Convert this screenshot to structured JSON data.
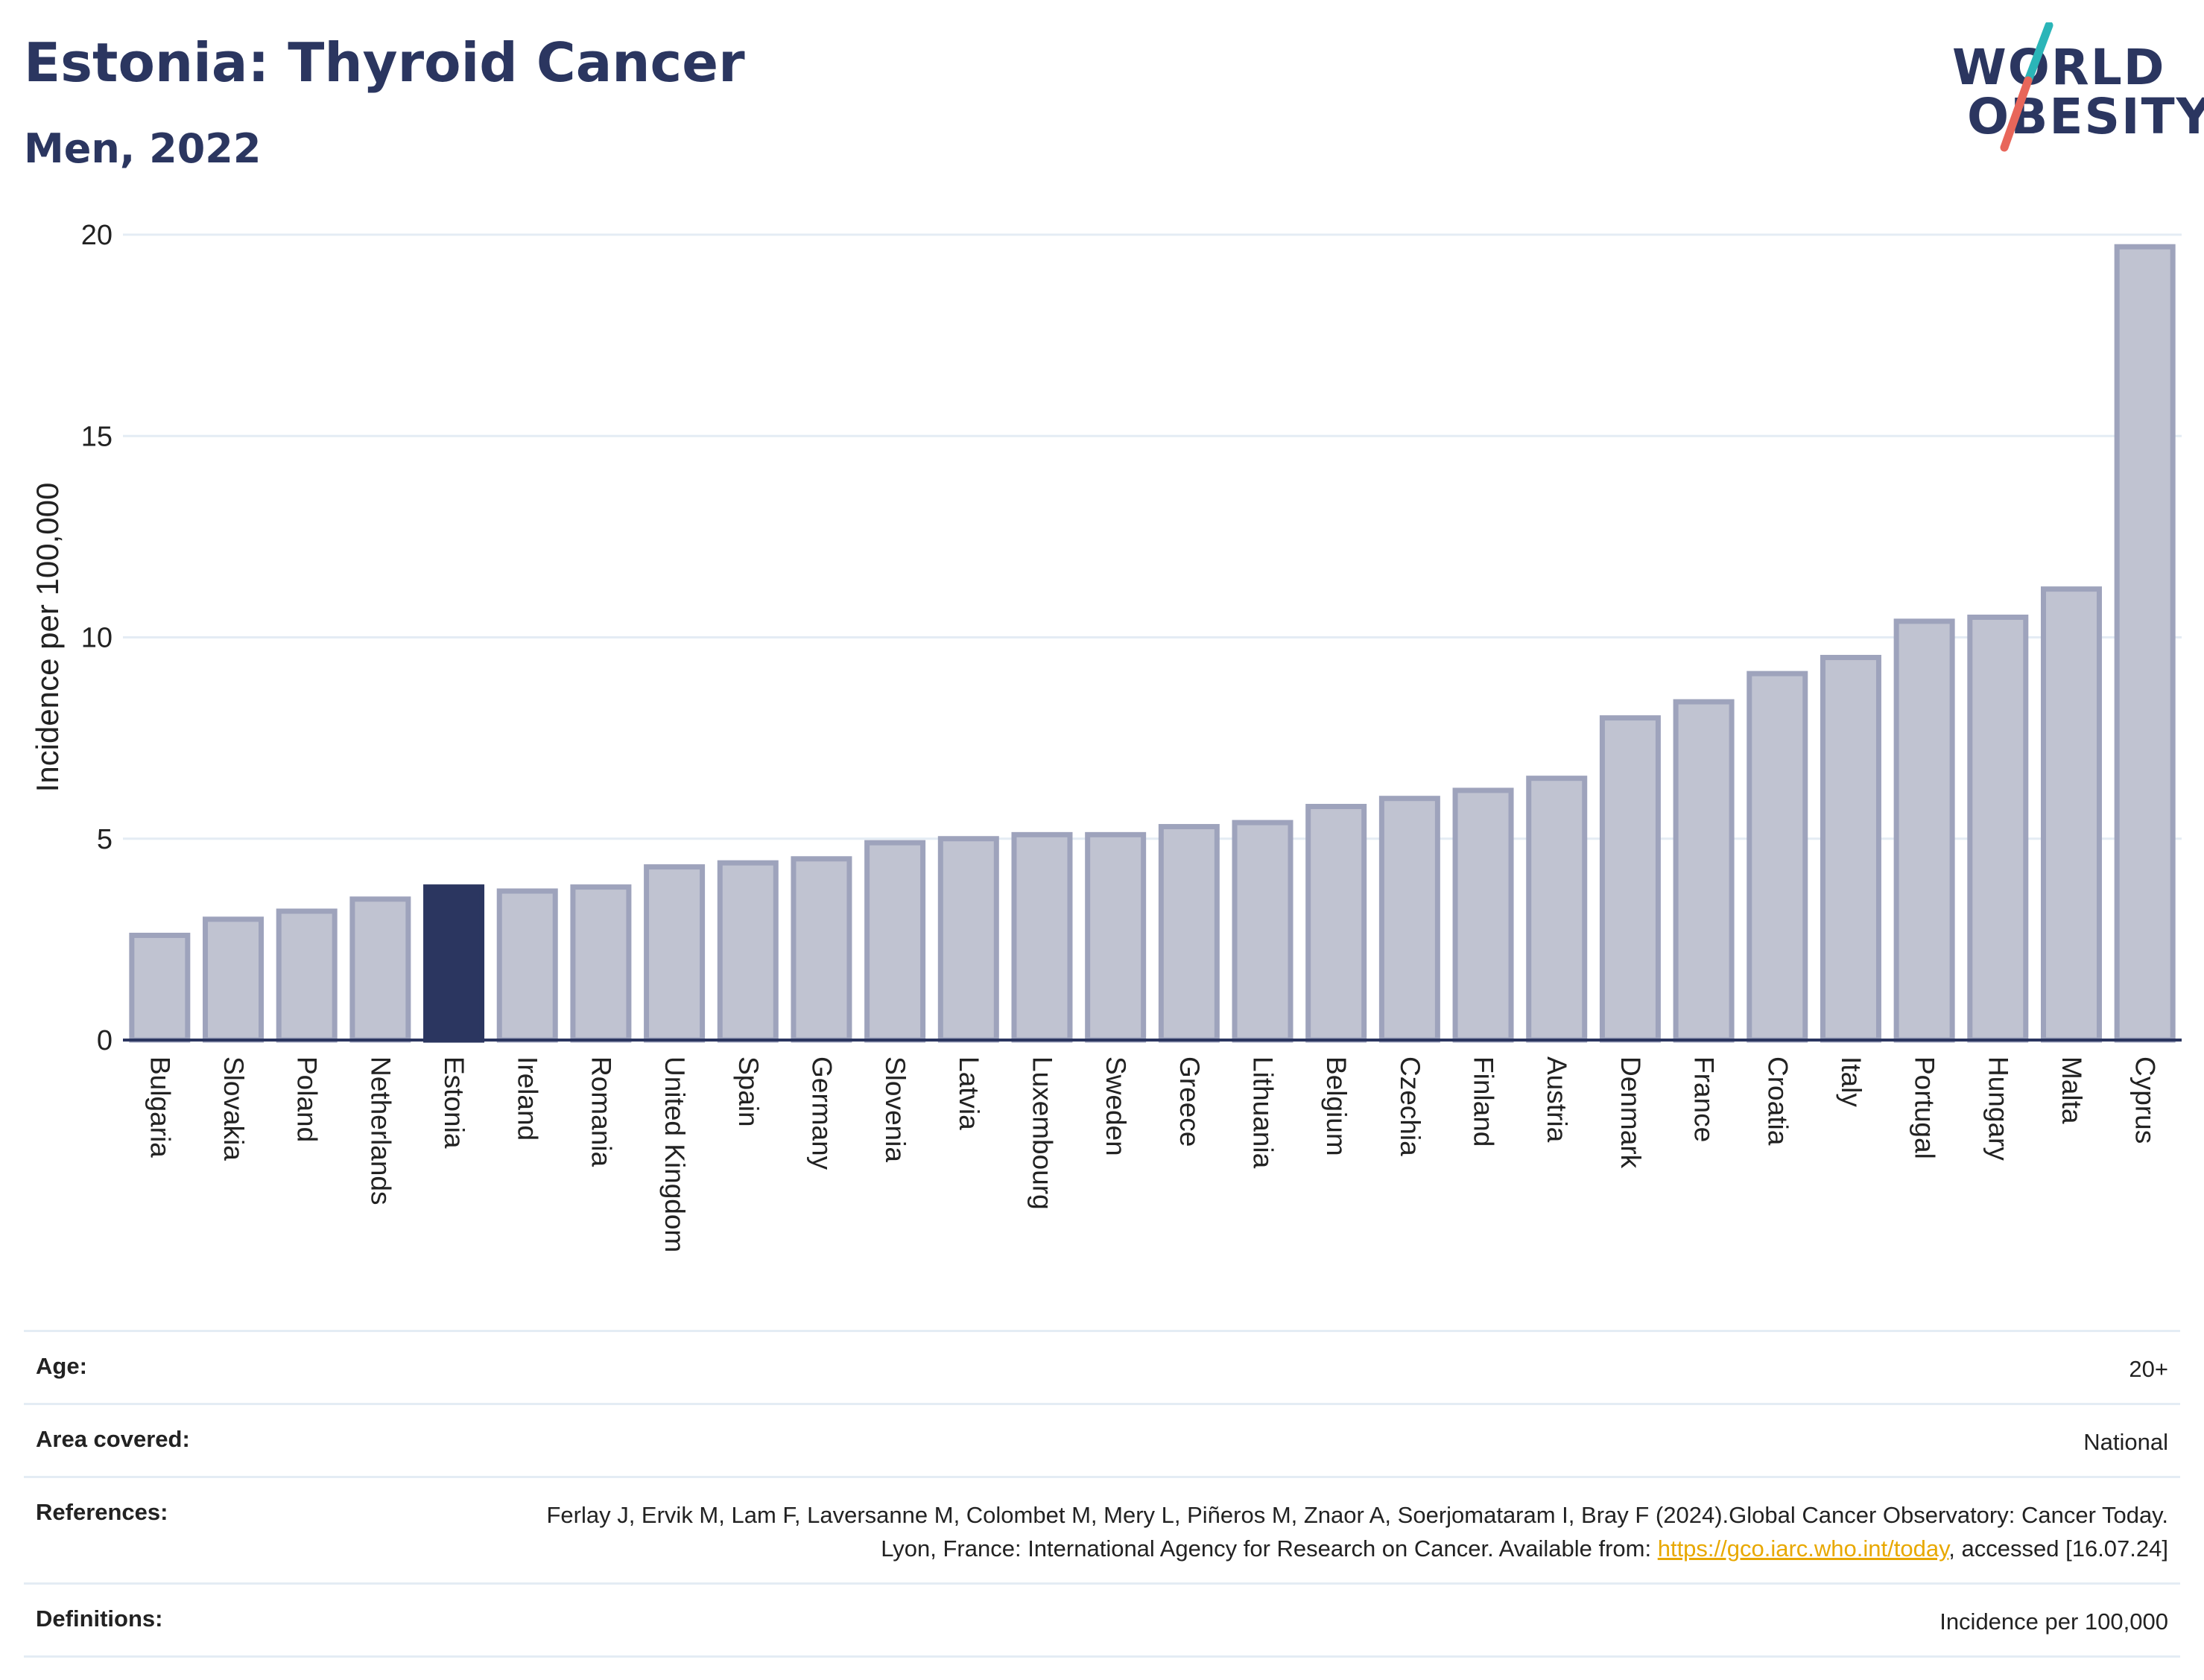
{
  "header": {
    "title": "Estonia: Thyroid Cancer",
    "subtitle": "Men, 2022"
  },
  "logo": {
    "line1": "WORLD",
    "line2": "OBESITY",
    "slash_color_top": "#2bb5b8",
    "slash_color_bottom": "#e8665a"
  },
  "colors": {
    "bar": "#c0c3d1",
    "bar_stroke": "#9ea3bc",
    "highlight": "#2b3660",
    "text": "#2b3660"
  },
  "chart_data": {
    "type": "bar",
    "title": "Estonia: Thyroid Cancer",
    "subtitle": "Men, 2022",
    "xlabel": "",
    "ylabel": "Incidence per 100,000",
    "ylim": [
      0,
      20
    ],
    "yticks": [
      0,
      5,
      10,
      15,
      20
    ],
    "grid": true,
    "highlight": "Estonia",
    "categories": [
      "Bulgaria",
      "Slovakia",
      "Poland",
      "Netherlands",
      "Estonia",
      "Ireland",
      "Romania",
      "United Kingdom",
      "Spain",
      "Germany",
      "Slovenia",
      "Latvia",
      "Luxembourg",
      "Sweden",
      "Greece",
      "Lithuania",
      "Belgium",
      "Czechia",
      "Finland",
      "Austria",
      "Denmark",
      "France",
      "Croatia",
      "Italy",
      "Portugal",
      "Hungary",
      "Malta",
      "Cyprus"
    ],
    "values": [
      2.6,
      3.0,
      3.2,
      3.5,
      3.8,
      3.7,
      3.8,
      4.3,
      4.4,
      4.5,
      4.9,
      5.0,
      5.1,
      5.1,
      5.3,
      5.4,
      5.8,
      6.0,
      6.2,
      6.5,
      8.0,
      8.4,
      9.1,
      9.5,
      10.4,
      10.5,
      11.2,
      19.7
    ]
  },
  "meta": {
    "age_label": "Age:",
    "age_value": "20+",
    "area_label": "Area covered:",
    "area_value": "National",
    "references_label": "References:",
    "references_text_1": "Ferlay J, Ervik M, Lam F, Laversanne M, Colombet M, Mery L, Piñeros M, Znaor A, Soerjomataram I, Bray F (2024).Global Cancer Observatory: Cancer Today. Lyon, France: International Agency for Research on Cancer. Available from: ",
    "references_link": "https://gco.iarc.who.int/today",
    "references_text_2": ", accessed [16.07.24]",
    "definitions_label": "Definitions:",
    "definitions_value": "Incidence per 100,000"
  }
}
